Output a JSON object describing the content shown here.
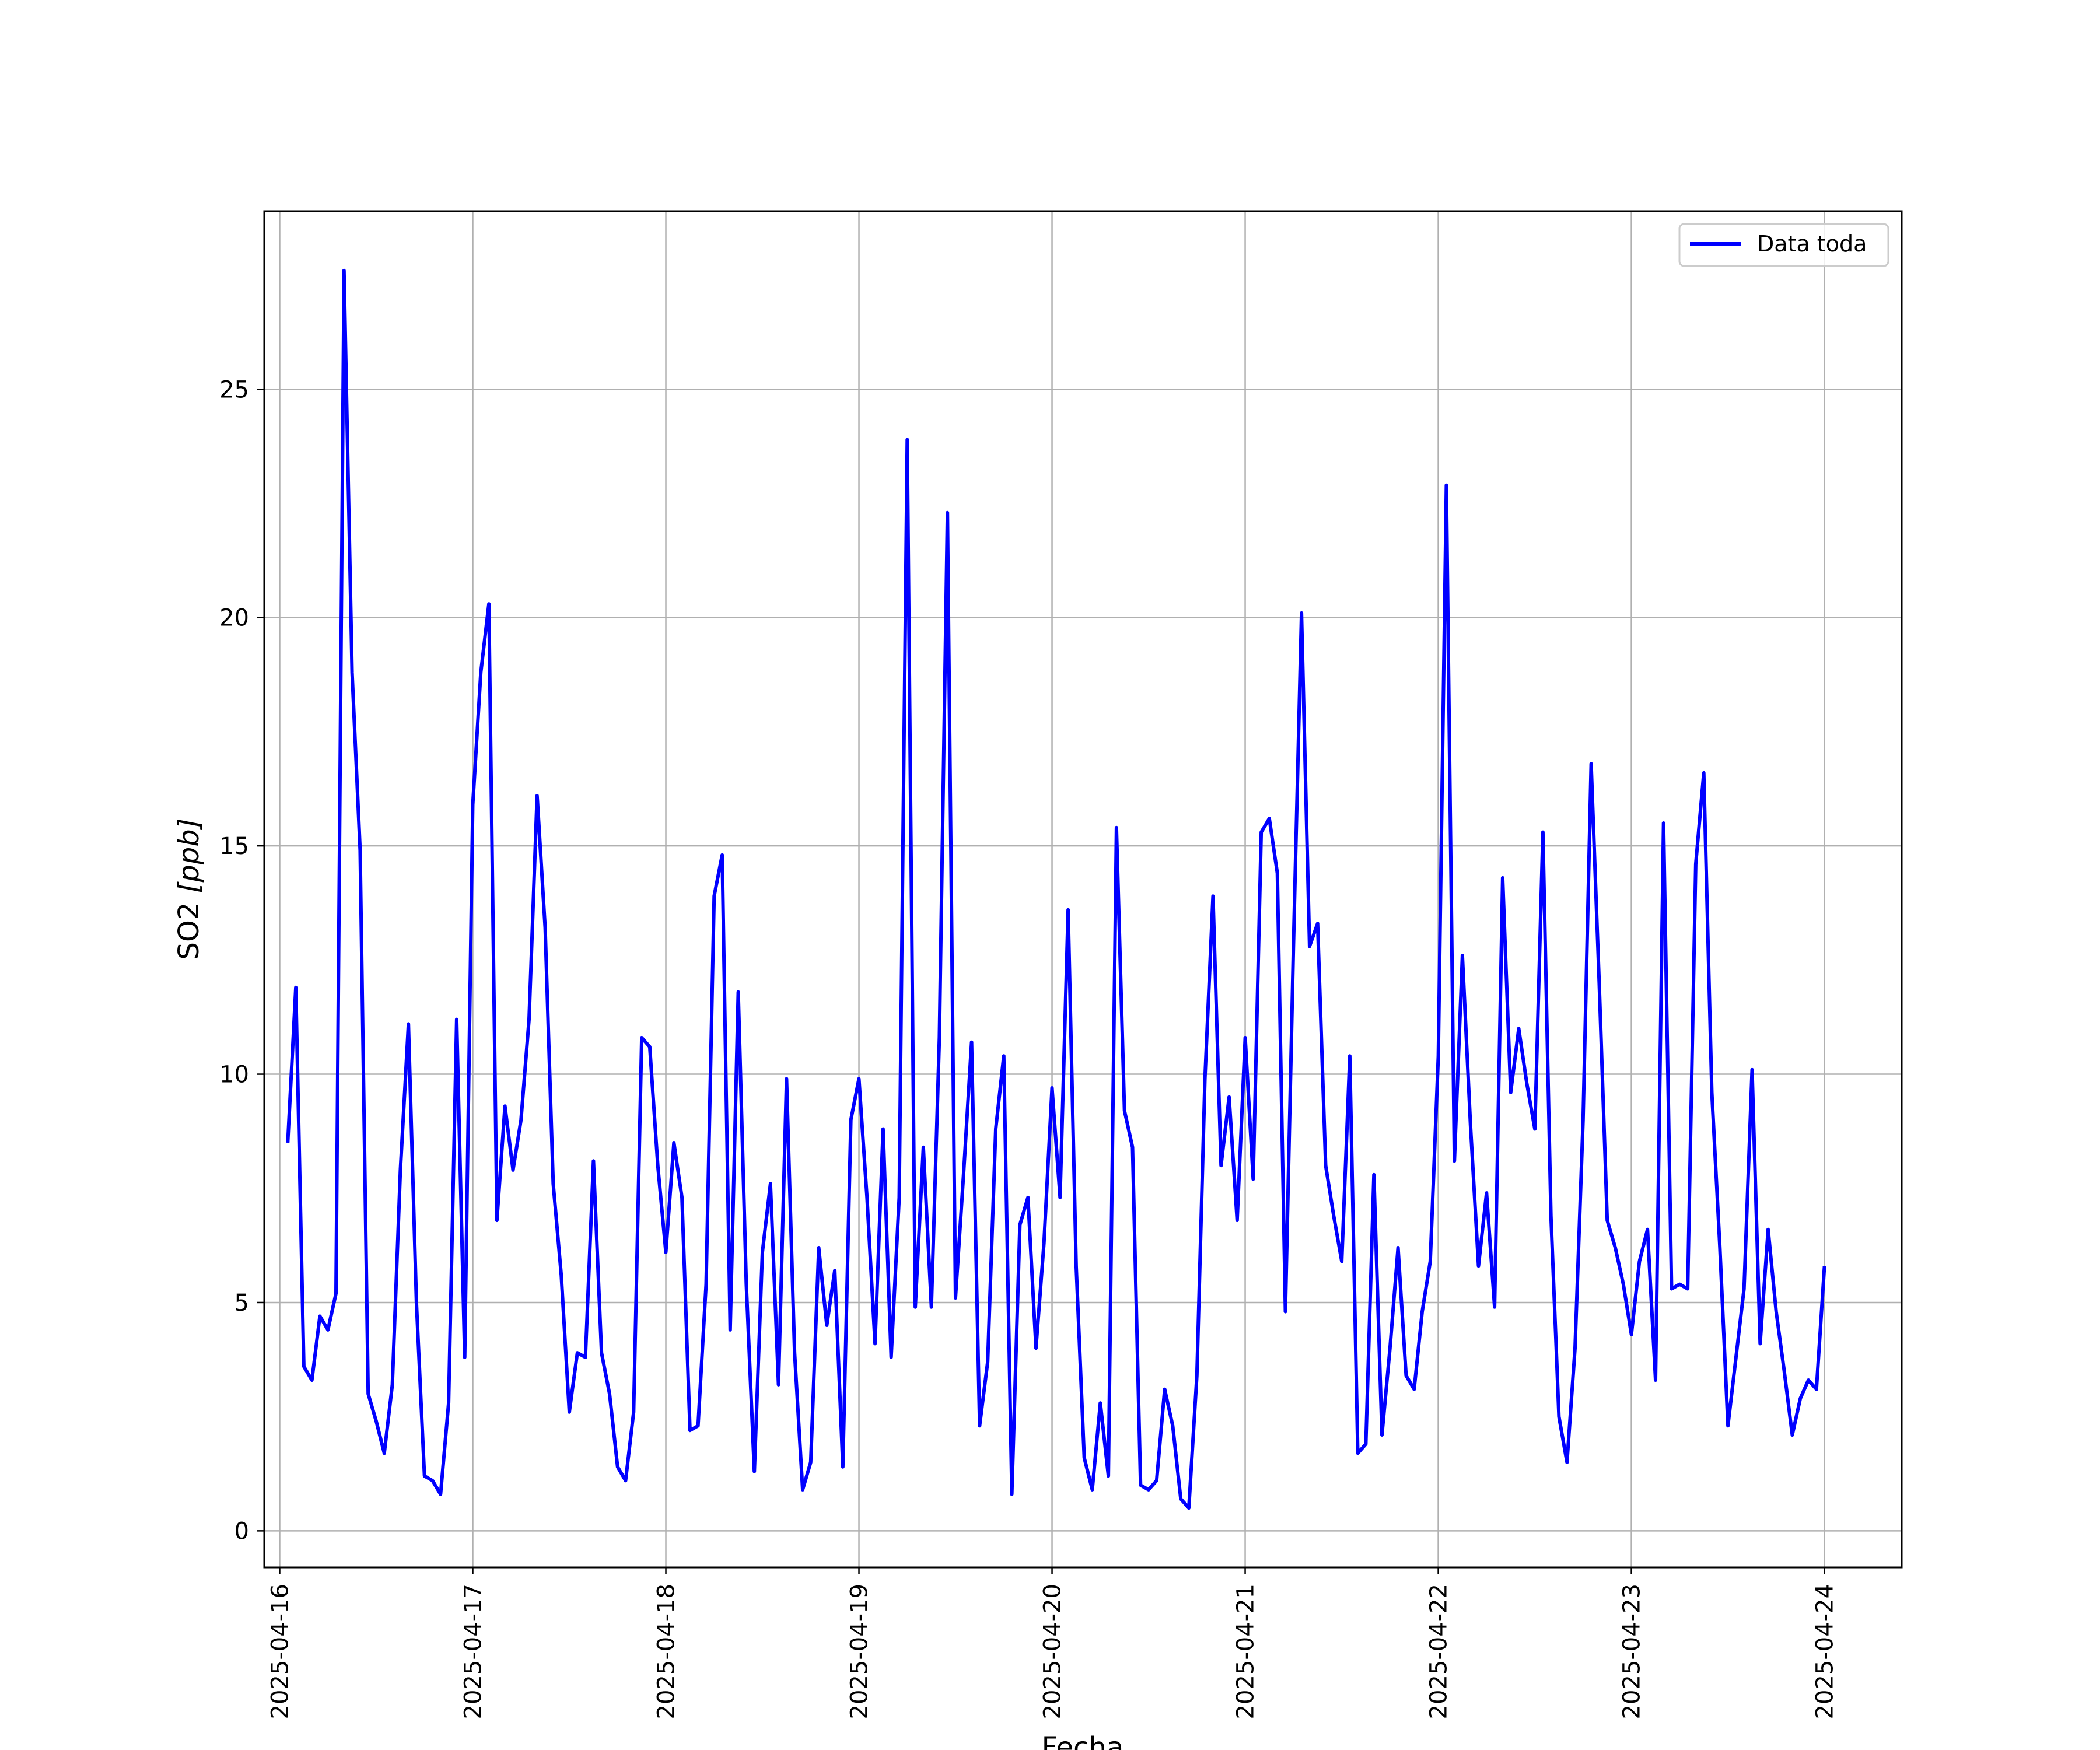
{
  "chart_data": {
    "type": "line",
    "title": "",
    "xlabel": "Fecha",
    "ylabel_text": "SO2 ",
    "ylabel_unit": "[ppb]",
    "x_ticks": [
      "2025-04-16",
      "2025-04-17",
      "2025-04-18",
      "2025-04-19",
      "2025-04-20",
      "2025-04-21",
      "2025-04-22",
      "2025-04-23",
      "2025-04-24"
    ],
    "y_ticks": [
      0,
      5,
      10,
      15,
      20,
      25
    ],
    "ylim": [
      -0.8,
      28.9
    ],
    "xlim_days": [
      -0.08,
      8.4
    ],
    "grid": true,
    "legend_position": "upper right",
    "series": [
      {
        "name": "Data toda",
        "color": "#0000ff",
        "x_start": "2025-04-16 01:00",
        "x_step_hours": 1,
        "values": [
          8.5,
          11.9,
          3.6,
          3.3,
          4.7,
          4.4,
          5.2,
          27.6,
          18.8,
          14.9,
          3.0,
          2.4,
          1.7,
          3.2,
          7.9,
          11.1,
          5.0,
          1.2,
          1.1,
          0.8,
          2.8,
          11.2,
          3.8,
          15.9,
          18.8,
          20.3,
          6.8,
          9.3,
          7.9,
          9.0,
          11.2,
          16.1,
          13.2,
          7.6,
          5.6,
          2.6,
          3.9,
          3.8,
          8.1,
          3.9,
          3.0,
          1.4,
          1.1,
          2.6,
          10.8,
          10.6,
          8.0,
          6.1,
          8.5,
          7.3,
          2.2,
          2.3,
          5.4,
          13.9,
          14.8,
          4.4,
          11.8,
          5.4,
          1.3,
          6.1,
          7.6,
          3.2,
          9.9,
          3.9,
          0.9,
          1.5,
          6.2,
          4.5,
          5.7,
          1.4,
          9.0,
          9.9,
          7.3,
          4.1,
          8.8,
          3.8,
          7.3,
          23.9,
          4.9,
          8.4,
          4.9,
          10.8,
          22.3,
          5.1,
          7.8,
          10.7,
          2.3,
          3.7,
          8.8,
          10.4,
          0.8,
          6.7,
          7.3,
          4.0,
          6.3,
          9.7,
          7.3,
          13.6,
          5.8,
          1.6,
          0.9,
          2.8,
          1.2,
          15.4,
          9.2,
          8.4,
          1.0,
          0.9,
          1.1,
          3.1,
          2.3,
          0.7,
          0.5,
          3.4,
          9.9,
          13.9,
          8.0,
          9.5,
          6.8,
          10.8,
          7.7,
          15.3,
          15.6,
          14.4,
          4.8,
          12.8,
          20.1,
          12.8,
          13.3,
          8.0,
          6.9,
          5.9,
          10.4,
          1.7,
          1.9,
          7.8,
          2.1,
          4.0,
          6.2,
          3.4,
          3.1,
          4.8,
          5.9,
          10.4,
          22.9,
          8.1,
          12.6,
          8.9,
          5.8,
          7.4,
          4.9,
          14.3,
          9.6,
          11.0,
          9.8,
          8.8,
          15.3,
          6.9,
          2.5,
          1.5,
          4.0,
          9.0,
          16.8,
          12.0,
          6.8,
          6.2,
          5.4,
          4.3,
          5.9,
          6.6,
          3.3,
          15.5,
          5.3,
          5.4,
          5.3,
          14.6,
          16.6,
          9.6,
          6.2,
          2.3,
          3.8,
          5.3,
          10.1,
          4.1,
          6.6,
          4.8,
          3.5,
          2.1,
          2.9,
          3.3,
          3.1,
          5.8
        ]
      }
    ]
  }
}
